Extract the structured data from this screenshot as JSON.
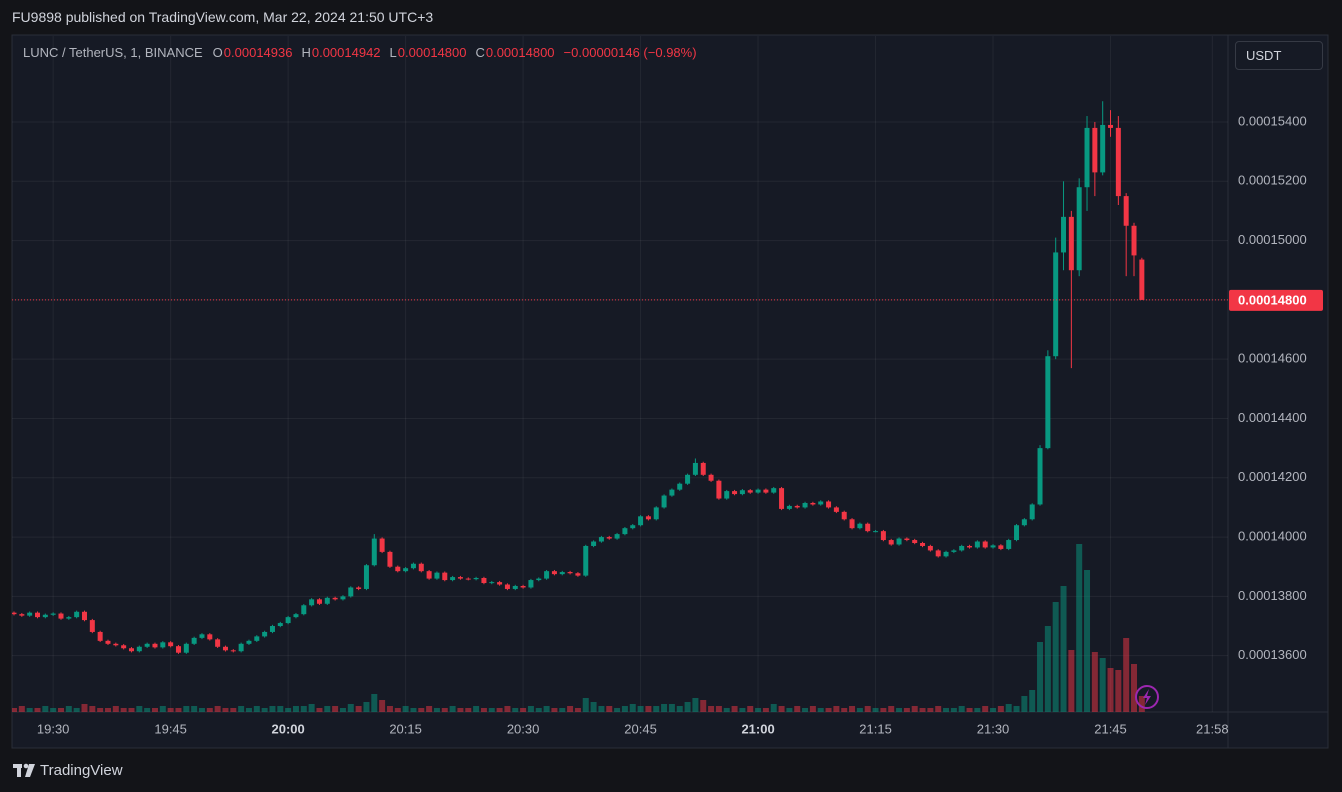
{
  "header": {
    "published": "FU9898 published on TradingView.com, Mar 22, 2024 21:50 UTC+3"
  },
  "legend": {
    "symbol": "LUNC / TetherUS, 1, BINANCE",
    "o_label": "O",
    "o": "0.00014936",
    "h_label": "H",
    "h": "0.00014942",
    "l_label": "L",
    "l": "0.00014800",
    "c_label": "C",
    "c": "0.00014800",
    "change": "−0.00000146 (−0.98%)"
  },
  "ui": {
    "currency": "USDT"
  },
  "footer": {
    "brand": "TradingView"
  },
  "chart_data": {
    "type": "candlestick",
    "up_color": "#089981",
    "down_color": "#f23645",
    "grid": true,
    "x": [
      "19:25",
      "19:26",
      "19:27",
      "19:28",
      "19:29",
      "19:30",
      "19:31",
      "19:32",
      "19:33",
      "19:34",
      "19:35",
      "19:36",
      "19:37",
      "19:38",
      "19:39",
      "19:40",
      "19:41",
      "19:42",
      "19:43",
      "19:44",
      "19:45",
      "19:46",
      "19:47",
      "19:48",
      "19:49",
      "19:50",
      "19:51",
      "19:52",
      "19:53",
      "19:54",
      "19:55",
      "19:56",
      "19:57",
      "19:58",
      "19:59",
      "20:00",
      "20:01",
      "20:02",
      "20:03",
      "20:04",
      "20:05",
      "20:06",
      "20:07",
      "20:08",
      "20:09",
      "20:10",
      "20:11",
      "20:12",
      "20:13",
      "20:14",
      "20:15",
      "20:16",
      "20:17",
      "20:18",
      "20:19",
      "20:20",
      "20:21",
      "20:22",
      "20:23",
      "20:24",
      "20:25",
      "20:26",
      "20:27",
      "20:28",
      "20:29",
      "20:30",
      "20:31",
      "20:32",
      "20:33",
      "20:34",
      "20:35",
      "20:36",
      "20:37",
      "20:38",
      "20:39",
      "20:40",
      "20:41",
      "20:42",
      "20:43",
      "20:44",
      "20:45",
      "20:46",
      "20:47",
      "20:48",
      "20:49",
      "20:50",
      "20:51",
      "20:52",
      "20:53",
      "20:54",
      "20:55",
      "20:56",
      "20:57",
      "20:58",
      "20:59",
      "21:00",
      "21:01",
      "21:02",
      "21:03",
      "21:04",
      "21:05",
      "21:06",
      "21:07",
      "21:08",
      "21:09",
      "21:10",
      "21:11",
      "21:12",
      "21:13",
      "21:14",
      "21:15",
      "21:16",
      "21:17",
      "21:18",
      "21:19",
      "21:20",
      "21:21",
      "21:22",
      "21:23",
      "21:24",
      "21:25",
      "21:26",
      "21:27",
      "21:28",
      "21:29",
      "21:30",
      "21:31",
      "21:32",
      "21:33",
      "21:34",
      "21:35",
      "21:36",
      "21:37",
      "21:38",
      "21:39",
      "21:40",
      "21:41",
      "21:42",
      "21:43",
      "21:44",
      "21:45",
      "21:46",
      "21:47",
      "21:48",
      "21:49"
    ],
    "open": [
      0.00013745,
      0.0001374,
      0.00013735,
      0.00013745,
      0.0001373,
      0.00013738,
      0.00013742,
      0.00013725,
      0.0001373,
      0.00013748,
      0.0001372,
      0.0001368,
      0.0001365,
      0.0001364,
      0.00013635,
      0.00013625,
      0.00013615,
      0.0001363,
      0.0001364,
      0.00013628,
      0.00013645,
      0.00013632,
      0.0001361,
      0.0001364,
      0.0001366,
      0.00013672,
      0.00013655,
      0.0001363,
      0.00013618,
      0.00013615,
      0.0001364,
      0.0001365,
      0.00013665,
      0.0001368,
      0.000137,
      0.0001371,
      0.0001373,
      0.0001374,
      0.0001377,
      0.0001379,
      0.00013775,
      0.00013795,
      0.0001379,
      0.000138,
      0.0001383,
      0.00013825,
      0.00013905,
      0.00013995,
      0.0001395,
      0.000139,
      0.00013885,
      0.00013895,
      0.0001391,
      0.00013885,
      0.0001386,
      0.0001388,
      0.00013855,
      0.00013865,
      0.0001386,
      0.00013858,
      0.00013862,
      0.00013845,
      0.00013848,
      0.0001384,
      0.00013825,
      0.00013835,
      0.0001383,
      0.00013855,
      0.0001386,
      0.00013885,
      0.00013875,
      0.00013882,
      0.00013878,
      0.0001387,
      0.0001397,
      0.00013985,
      0.00014,
      0.00013995,
      0.0001401,
      0.0001403,
      0.0001404,
      0.0001407,
      0.0001406,
      0.000141,
      0.0001414,
      0.0001416,
      0.0001418,
      0.0001421,
      0.0001425,
      0.0001421,
      0.0001419,
      0.0001413,
      0.00014155,
      0.00014145,
      0.00014158,
      0.0001415,
      0.0001416,
      0.0001415,
      0.00014165,
      0.00014095,
      0.00014105,
      0.000141,
      0.00014115,
      0.0001411,
      0.0001412,
      0.000141,
      0.00014085,
      0.0001406,
      0.0001403,
      0.00014045,
      0.0001402,
      0.0001402,
      0.0001399,
      0.00013975,
      0.00013995,
      0.0001399,
      0.0001398,
      0.0001397,
      0.00013955,
      0.00013935,
      0.0001395,
      0.00013955,
      0.0001397,
      0.00013965,
      0.00013985,
      0.00013965,
      0.00013972,
      0.0001396,
      0.0001399,
      0.0001404,
      0.0001406,
      0.0001411,
      0.000143,
      0.0001461,
      0.0001496,
      0.0001508,
      0.000149,
      0.0001518,
      0.0001538,
      0.0001523,
      0.0001539,
      0.0001538,
      0.0001515,
      0.0001505,
      0.00014936
    ],
    "high": [
      0.00013749,
      0.00013744,
      0.00013749,
      0.00013749,
      0.00013742,
      0.00013746,
      0.00013746,
      0.00013734,
      0.00013752,
      0.00013752,
      0.00013724,
      0.00013684,
      0.00013654,
      0.00013644,
      0.00013639,
      0.00013629,
      0.00013634,
      0.00013644,
      0.00013644,
      0.00013649,
      0.00013649,
      0.00013636,
      0.00013644,
      0.00013664,
      0.00013676,
      0.00013676,
      0.00013659,
      0.00013634,
      0.00013622,
      0.00013644,
      0.00013654,
      0.00013669,
      0.00013684,
      0.00013704,
      0.00013714,
      0.00013734,
      0.00013744,
      0.00013774,
      0.00013794,
      0.00013794,
      0.00013799,
      0.00013799,
      0.00013804,
      0.00013834,
      0.00013834,
      0.00013909,
      0.0001401,
      0.00013999,
      0.00013954,
      0.00013904,
      0.00013899,
      0.00013914,
      0.00013914,
      0.00013889,
      0.00013884,
      0.00013884,
      0.00013869,
      0.00013869,
      0.00013864,
      0.00013866,
      0.00013866,
      0.00013852,
      0.00013852,
      0.00013844,
      0.00013839,
      0.00013839,
      0.00013859,
      0.00013864,
      0.00013889,
      0.00013889,
      0.00013886,
      0.00013886,
      0.00013882,
      0.00013974,
      0.00013989,
      0.00014004,
      0.00014004,
      0.00014014,
      0.00014034,
      0.00014044,
      0.00014074,
      0.00014074,
      0.00014104,
      0.00014144,
      0.00014164,
      0.00014184,
      0.00014214,
      0.00014265,
      0.00014254,
      0.00014214,
      0.00014194,
      0.00014159,
      0.00014159,
      0.00014162,
      0.00014162,
      0.00014164,
      0.00014164,
      0.00014169,
      0.00014169,
      0.00014109,
      0.00014109,
      0.00014119,
      0.00014119,
      0.00014124,
      0.00014124,
      0.00014104,
      0.00014089,
      0.00014064,
      0.00014049,
      0.00014049,
      0.00014024,
      0.00014024,
      0.00013994,
      0.00013999,
      0.00013999,
      0.00013994,
      0.00013984,
      0.00013974,
      0.00013959,
      0.00013954,
      0.00013959,
      0.00013974,
      0.00013974,
      0.00013989,
      0.00013989,
      0.00013976,
      0.00013976,
      0.00013994,
      0.00014044,
      0.00014064,
      0.00014114,
      0.0001431,
      0.0001463,
      0.0001501,
      0.000152,
      0.000151,
      0.0001521,
      0.0001542,
      0.000154,
      0.0001547,
      0.0001544,
      0.0001542,
      0.0001516,
      0.0001506,
      0.00014942
    ],
    "low": [
      0.00013736,
      0.00013731,
      0.00013731,
      0.00013726,
      0.00013726,
      0.00013734,
      0.00013721,
      0.00013721,
      0.00013726,
      0.00013716,
      0.00013676,
      0.00013646,
      0.00013636,
      0.00013631,
      0.00013621,
      0.00013611,
      0.00013611,
      0.00013626,
      0.00013624,
      0.00013624,
      0.00013628,
      0.00013606,
      0.00013606,
      0.00013636,
      0.00013656,
      0.00013651,
      0.00013626,
      0.00013614,
      0.00013611,
      0.00013611,
      0.00013636,
      0.00013646,
      0.00013661,
      0.00013676,
      0.00013696,
      0.00013706,
      0.00013726,
      0.00013736,
      0.00013766,
      0.00013771,
      0.00013771,
      0.00013786,
      0.00013786,
      0.00013796,
      0.00013821,
      0.00013821,
      0.00013901,
      0.00013946,
      0.00013896,
      0.00013881,
      0.00013881,
      0.00013891,
      0.00013881,
      0.00013856,
      0.00013856,
      0.00013851,
      0.00013851,
      0.00013856,
      0.00013854,
      0.00013854,
      0.00013841,
      0.00013841,
      0.00013836,
      0.00013821,
      0.00013821,
      0.00013826,
      0.00013826,
      0.00013851,
      0.00013856,
      0.00013871,
      0.00013871,
      0.00013874,
      0.00013866,
      0.00013866,
      0.00013966,
      0.00013981,
      0.00013991,
      0.00013991,
      0.00014006,
      0.00014026,
      0.00014036,
      0.00014056,
      0.00014056,
      0.00014096,
      0.00014136,
      0.00014156,
      0.00014176,
      0.00014206,
      0.00014206,
      0.00014186,
      0.00014126,
      0.00014126,
      0.00014141,
      0.00014141,
      0.00014146,
      0.00014146,
      0.00014146,
      0.00014146,
      0.00014091,
      0.00014091,
      0.00014096,
      0.00014096,
      0.00014106,
      0.00014106,
      0.00014096,
      0.00014081,
      0.00014056,
      0.00014026,
      0.00014026,
      0.00014016,
      0.00014016,
      0.00013986,
      0.00013971,
      0.00013971,
      0.00013986,
      0.00013976,
      0.00013966,
      0.00013951,
      0.00013931,
      0.00013931,
      0.00013946,
      0.00013951,
      0.00013961,
      0.00013961,
      0.00013961,
      0.00013961,
      0.00013956,
      0.00013956,
      0.00013986,
      0.00014036,
      0.00014056,
      0.00014106,
      0.00014296,
      0.000146,
      0.000149,
      0.0001457,
      0.0001488,
      0.000151,
      0.0001515,
      0.0001522,
      0.0001535,
      0.0001512,
      0.0001488,
      0.0001488,
      0.000148
    ],
    "close": [
      0.0001374,
      0.00013735,
      0.00013745,
      0.0001373,
      0.00013738,
      0.00013742,
      0.00013725,
      0.0001373,
      0.00013748,
      0.0001372,
      0.0001368,
      0.0001365,
      0.0001364,
      0.00013635,
      0.00013625,
      0.00013615,
      0.0001363,
      0.0001364,
      0.00013628,
      0.00013645,
      0.00013632,
      0.0001361,
      0.0001364,
      0.0001366,
      0.00013672,
      0.00013655,
      0.0001363,
      0.00013618,
      0.00013615,
      0.0001364,
      0.0001365,
      0.00013665,
      0.0001368,
      0.000137,
      0.0001371,
      0.0001373,
      0.0001374,
      0.0001377,
      0.0001379,
      0.00013775,
      0.00013795,
      0.0001379,
      0.000138,
      0.0001383,
      0.00013825,
      0.00013905,
      0.00013995,
      0.0001395,
      0.000139,
      0.00013885,
      0.00013895,
      0.0001391,
      0.00013885,
      0.0001386,
      0.0001388,
      0.00013855,
      0.00013865,
      0.0001386,
      0.00013858,
      0.00013862,
      0.00013845,
      0.00013848,
      0.0001384,
      0.00013825,
      0.00013835,
      0.0001383,
      0.00013855,
      0.0001386,
      0.00013885,
      0.00013875,
      0.00013882,
      0.00013878,
      0.0001387,
      0.0001397,
      0.00013985,
      0.00014,
      0.00013995,
      0.0001401,
      0.0001403,
      0.0001404,
      0.0001407,
      0.0001406,
      0.000141,
      0.0001414,
      0.0001416,
      0.0001418,
      0.0001421,
      0.0001425,
      0.0001421,
      0.0001419,
      0.0001413,
      0.00014155,
      0.00014145,
      0.00014158,
      0.0001415,
      0.0001416,
      0.0001415,
      0.00014165,
      0.00014095,
      0.00014105,
      0.000141,
      0.00014115,
      0.0001411,
      0.0001412,
      0.000141,
      0.00014085,
      0.0001406,
      0.0001403,
      0.00014045,
      0.0001402,
      0.0001402,
      0.0001399,
      0.00013975,
      0.00013995,
      0.0001399,
      0.0001398,
      0.0001397,
      0.00013955,
      0.00013935,
      0.0001395,
      0.00013955,
      0.0001397,
      0.00013965,
      0.00013985,
      0.00013965,
      0.00013972,
      0.0001396,
      0.0001399,
      0.0001404,
      0.0001406,
      0.0001411,
      0.000143,
      0.0001461,
      0.0001496,
      0.0001508,
      0.000149,
      0.0001518,
      0.0001538,
      0.0001523,
      0.0001539,
      0.0001538,
      0.0001515,
      0.0001505,
      0.0001495,
      0.000148
    ],
    "volume": [
      2,
      3,
      2,
      2,
      3,
      2,
      2,
      3,
      2,
      4,
      3,
      2,
      2,
      3,
      2,
      2,
      3,
      2,
      2,
      3,
      2,
      2,
      3,
      3,
      2,
      2,
      3,
      2,
      2,
      3,
      2,
      3,
      2,
      3,
      3,
      2,
      3,
      3,
      4,
      2,
      3,
      3,
      2,
      4,
      3,
      5,
      9,
      6,
      3,
      2,
      3,
      2,
      2,
      3,
      2,
      2,
      3,
      2,
      2,
      3,
      2,
      2,
      2,
      3,
      2,
      2,
      3,
      2,
      3,
      2,
      2,
      3,
      2,
      7,
      5,
      3,
      3,
      2,
      3,
      4,
      3,
      3,
      3,
      4,
      4,
      3,
      5,
      7,
      6,
      3,
      3,
      2,
      3,
      2,
      3,
      2,
      2,
      4,
      3,
      2,
      3,
      2,
      3,
      2,
      2,
      3,
      2,
      3,
      2,
      3,
      2,
      2,
      3,
      2,
      2,
      3,
      2,
      2,
      3,
      2,
      2,
      3,
      2,
      2,
      3,
      2,
      3,
      4,
      3,
      8,
      11,
      35,
      43,
      55,
      63,
      31,
      84,
      71,
      30,
      27,
      22,
      21,
      37,
      24,
      8
    ],
    "volume_up_color": "rgba(8,153,129,0.5)",
    "volume_down_color": "rgba(242,54,69,0.5)",
    "xlim": [
      "19:25",
      "22:00"
    ],
    "xticks": [
      "19:30",
      "19:45",
      "20:00",
      "20:15",
      "20:30",
      "20:45",
      "21:00",
      "21:15",
      "21:30",
      "21:45",
      "21:58"
    ],
    "ylim": [
      0.0001341,
      0.0001569
    ],
    "yticks": [
      {
        "value": 0.000136,
        "label": "0.00013600"
      },
      {
        "value": 0.000138,
        "label": "0.00013800"
      },
      {
        "value": 0.00014,
        "label": "0.00014000"
      },
      {
        "value": 0.000142,
        "label": "0.00014200"
      },
      {
        "value": 0.000144,
        "label": "0.00014400"
      },
      {
        "value": 0.000146,
        "label": "0.00014600"
      },
      {
        "value": 0.000148,
        "label": "0.00014800"
      },
      {
        "value": 0.00015,
        "label": "0.00015000"
      },
      {
        "value": 0.000152,
        "label": "0.00015200"
      },
      {
        "value": 0.000154,
        "label": "0.00015400"
      }
    ],
    "y2lim": [
      0,
      100
    ],
    "last_price": {
      "value": 0.000148,
      "label": "0.00014800"
    }
  }
}
